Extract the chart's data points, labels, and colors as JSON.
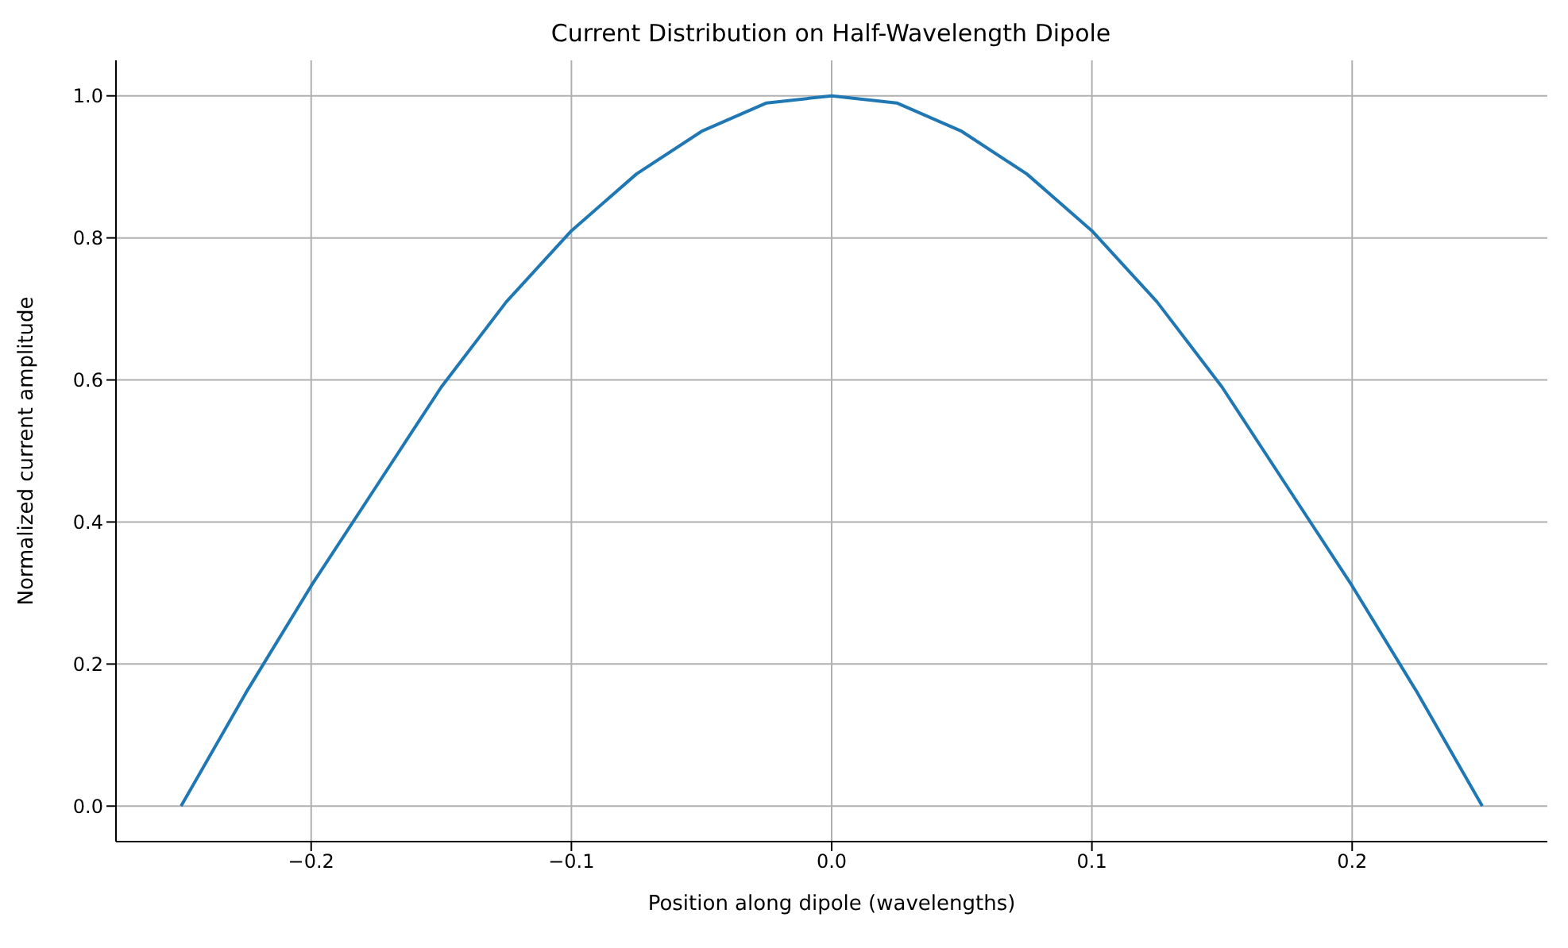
{
  "chart_data": {
    "type": "line",
    "title": "Current Distribution on Half-Wavelength Dipole",
    "xlabel": "Position along dipole (wavelengths)",
    "ylabel": "Normalized current amplitude",
    "x": [
      -0.25,
      -0.225,
      -0.2,
      -0.175,
      -0.15,
      -0.125,
      -0.1,
      -0.075,
      -0.05,
      -0.025,
      0,
      0.025,
      0.05,
      0.075,
      0.1,
      0.125,
      0.15,
      0.175,
      0.2,
      0.225,
      0.25
    ],
    "series": [
      {
        "color": "#1f77b4",
        "values": [
          0,
          0.16,
          0.31,
          0.45,
          0.59,
          0.71,
          0.81,
          0.89,
          0.95,
          0.99,
          1,
          0.99,
          0.95,
          0.89,
          0.81,
          0.71,
          0.59,
          0.45,
          0.31,
          0.16,
          0
        ]
      }
    ],
    "xlim": [
      -0.275,
      0.275
    ],
    "xticks": [
      {
        "value": -0.2,
        "label": "−0.2"
      },
      {
        "value": -0.1,
        "label": "−0.1"
      },
      {
        "value": 0,
        "label": "0.0"
      },
      {
        "value": 0.1,
        "label": "0.1"
      },
      {
        "value": 0.2,
        "label": "0.2"
      }
    ],
    "ylim": [
      -0.05,
      1.05
    ],
    "yticks": [
      {
        "value": 0,
        "label": "0.0"
      },
      {
        "value": 0.2,
        "label": "0.2"
      },
      {
        "value": 0.4,
        "label": "0.4"
      },
      {
        "value": 0.6,
        "label": "0.6"
      },
      {
        "value": 0.8,
        "label": "0.8"
      },
      {
        "value": 1,
        "label": "1.0"
      }
    ],
    "grid": true,
    "marker": "none",
    "line_style": "solid"
  }
}
